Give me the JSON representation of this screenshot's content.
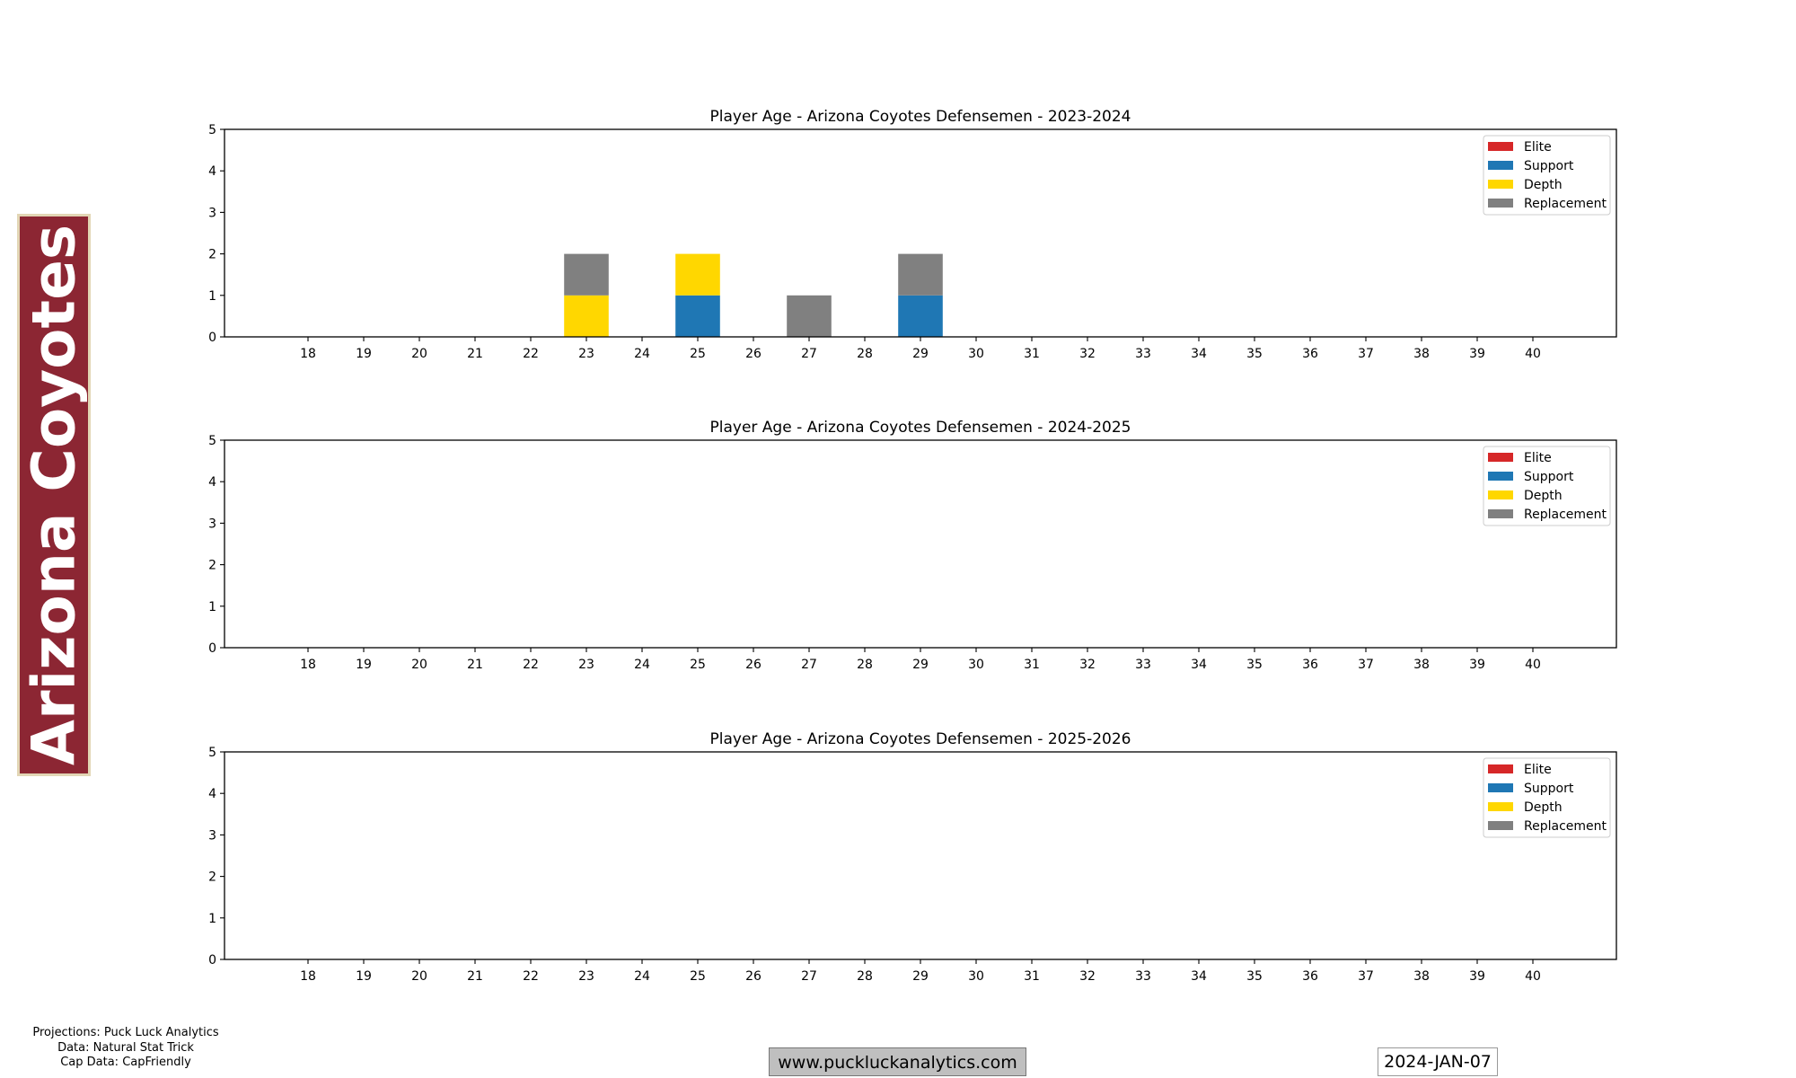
{
  "team_name": "Arizona Coyotes",
  "colors": {
    "banner_fill": "#8C2633",
    "banner_border": "#E2D6B5"
  },
  "categories_colors": {
    "Elite": "#d62728",
    "Support": "#1f77b4",
    "Depth": "#FFD700",
    "Replacement": "#808080"
  },
  "chart_data": [
    {
      "type": "bar",
      "stacked": true,
      "title": "Player Age - Arizona Coyotes Defensemen - 2023-2024",
      "xlabel": "",
      "ylabel": "",
      "x": [
        18,
        19,
        20,
        21,
        22,
        23,
        24,
        25,
        26,
        27,
        28,
        29,
        30,
        31,
        32,
        33,
        34,
        35,
        36,
        37,
        38,
        39,
        40
      ],
      "xlim": [
        16.5,
        41.5
      ],
      "ylim": [
        0,
        5
      ],
      "yticks": [
        0,
        1,
        2,
        3,
        4,
        5
      ],
      "legend": [
        "Elite",
        "Support",
        "Depth",
        "Replacement"
      ],
      "legend_position": "top-right",
      "series": [
        {
          "name": "Elite",
          "values": {}
        },
        {
          "name": "Support",
          "values": {
            "25": 1,
            "29": 1
          }
        },
        {
          "name": "Depth",
          "values": {
            "23": 1,
            "25": 1
          }
        },
        {
          "name": "Replacement",
          "values": {
            "23": 1,
            "27": 1,
            "29": 1
          }
        }
      ]
    },
    {
      "type": "bar",
      "stacked": true,
      "title": "Player Age - Arizona Coyotes Defensemen - 2024-2025",
      "xlabel": "",
      "ylabel": "",
      "x": [
        18,
        19,
        20,
        21,
        22,
        23,
        24,
        25,
        26,
        27,
        28,
        29,
        30,
        31,
        32,
        33,
        34,
        35,
        36,
        37,
        38,
        39,
        40
      ],
      "xlim": [
        16.5,
        41.5
      ],
      "ylim": [
        0,
        5
      ],
      "yticks": [
        0,
        1,
        2,
        3,
        4,
        5
      ],
      "legend": [
        "Elite",
        "Support",
        "Depth",
        "Replacement"
      ],
      "legend_position": "top-right",
      "series": [
        {
          "name": "Elite",
          "values": {}
        },
        {
          "name": "Support",
          "values": {}
        },
        {
          "name": "Depth",
          "values": {}
        },
        {
          "name": "Replacement",
          "values": {}
        }
      ]
    },
    {
      "type": "bar",
      "stacked": true,
      "title": "Player Age - Arizona Coyotes Defensemen - 2025-2026",
      "xlabel": "",
      "ylabel": "",
      "x": [
        18,
        19,
        20,
        21,
        22,
        23,
        24,
        25,
        26,
        27,
        28,
        29,
        30,
        31,
        32,
        33,
        34,
        35,
        36,
        37,
        38,
        39,
        40
      ],
      "xlim": [
        16.5,
        41.5
      ],
      "ylim": [
        0,
        5
      ],
      "yticks": [
        0,
        1,
        2,
        3,
        4,
        5
      ],
      "legend": [
        "Elite",
        "Support",
        "Depth",
        "Replacement"
      ],
      "legend_position": "top-right",
      "series": [
        {
          "name": "Elite",
          "values": {}
        },
        {
          "name": "Support",
          "values": {}
        },
        {
          "name": "Depth",
          "values": {}
        },
        {
          "name": "Replacement",
          "values": {}
        }
      ]
    }
  ],
  "footer": {
    "credits": [
      "Projections: Puck Luck Analytics",
      "Data: Natural Stat Trick",
      "Cap Data: CapFriendly"
    ],
    "website": "www.puckluckanalytics.com",
    "date": "2024-JAN-07"
  }
}
